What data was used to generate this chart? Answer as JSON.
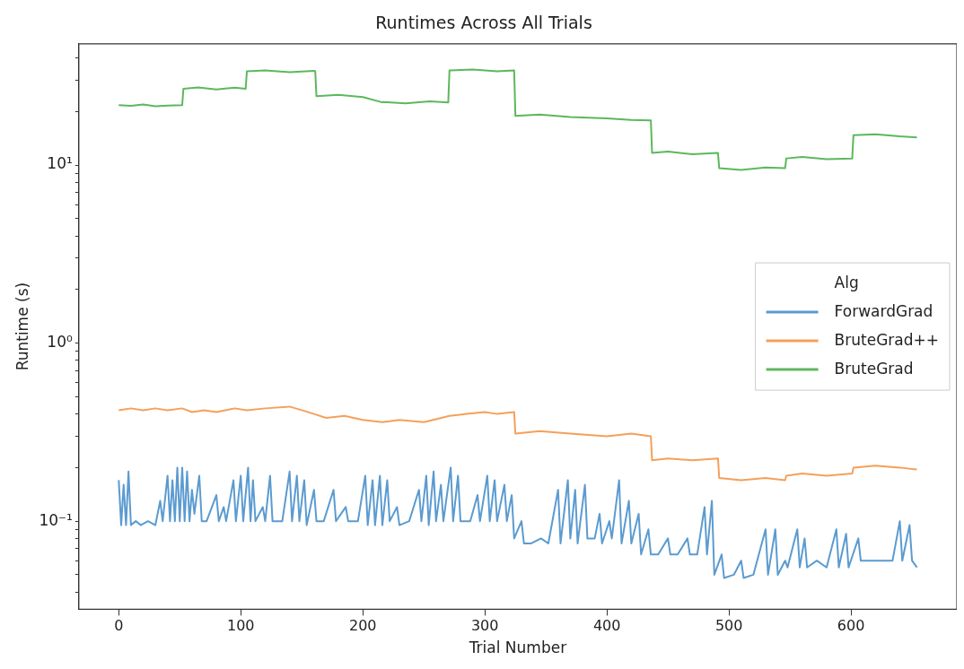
{
  "chart_data": {
    "type": "line",
    "title": "Runtimes Across All Trials",
    "xlabel": "Trial Number",
    "ylabel": "Runtime (s)",
    "legend_title": "Alg",
    "legend": "center right",
    "log": "y",
    "grid": false,
    "xlim": [
      -32.7,
      686.7
    ],
    "xticks": [
      0,
      100,
      200,
      300,
      400,
      500,
      600
    ],
    "ylim": [
      0.032,
      48
    ],
    "yticks": [
      {
        "value": 0.04,
        "label": null
      },
      {
        "value": 0.05,
        "label": null
      },
      {
        "value": 0.06,
        "label": null
      },
      {
        "value": 0.07,
        "label": null
      },
      {
        "value": 0.08,
        "label": null
      },
      {
        "value": 0.09,
        "label": null
      },
      {
        "value": 0.1,
        "label": "10⁻¹"
      },
      {
        "value": 0.2,
        "label": null
      },
      {
        "value": 0.3,
        "label": null
      },
      {
        "value": 0.4,
        "label": null
      },
      {
        "value": 0.5,
        "label": null
      },
      {
        "value": 0.6,
        "label": null
      },
      {
        "value": 0.7,
        "label": null
      },
      {
        "value": 0.8,
        "label": null
      },
      {
        "value": 0.9,
        "label": null
      },
      {
        "value": 1,
        "label": "10⁰"
      },
      {
        "value": 2,
        "label": null
      },
      {
        "value": 3,
        "label": null
      },
      {
        "value": 4,
        "label": null
      },
      {
        "value": 5,
        "label": null
      },
      {
        "value": 6,
        "label": null
      },
      {
        "value": 7,
        "label": null
      },
      {
        "value": 8,
        "label": null
      },
      {
        "value": 9,
        "label": null
      },
      {
        "value": 10,
        "label": "10¹"
      },
      {
        "value": 20,
        "label": null
      },
      {
        "value": 30,
        "label": null
      },
      {
        "value": 40,
        "label": null
      }
    ],
    "series": [
      {
        "name": "ForwardGrad",
        "color": "#5b9bd0",
        "x": [
          0,
          2,
          4,
          6,
          8,
          10,
          14,
          18,
          24,
          30,
          34,
          36,
          40,
          42,
          44,
          46,
          48,
          50,
          52,
          54,
          56,
          58,
          60,
          62,
          66,
          68,
          72,
          80,
          82,
          86,
          88,
          94,
          96,
          100,
          102,
          106,
          108,
          110,
          112,
          118,
          120,
          124,
          126,
          134,
          140,
          142,
          146,
          148,
          152,
          154,
          160,
          162,
          168,
          176,
          178,
          186,
          188,
          196,
          202,
          204,
          208,
          210,
          214,
          216,
          220,
          222,
          228,
          230,
          238,
          246,
          248,
          252,
          254,
          258,
          260,
          264,
          266,
          272,
          274,
          278,
          280,
          288,
          294,
          296,
          302,
          304,
          308,
          310,
          316,
          318,
          322,
          324,
          330,
          332,
          338,
          346,
          352,
          360,
          362,
          368,
          370,
          374,
          376,
          382,
          384,
          390,
          394,
          396,
          402,
          404,
          410,
          412,
          418,
          420,
          426,
          428,
          434,
          436,
          442,
          450,
          452,
          458,
          466,
          468,
          474,
          480,
          482,
          486,
          488,
          494,
          496,
          504,
          510,
          512,
          520,
          530,
          532,
          538,
          540,
          546,
          548,
          556,
          558,
          562,
          564,
          572,
          580,
          588,
          590,
          596,
          598,
          606,
          608,
          616,
          626,
          634,
          640,
          642,
          648,
          650,
          654
        ],
        "values": [
          0.17,
          0.095,
          0.16,
          0.095,
          0.19,
          0.095,
          0.1,
          0.095,
          0.1,
          0.095,
          0.13,
          0.1,
          0.18,
          0.1,
          0.17,
          0.1,
          0.2,
          0.1,
          0.2,
          0.1,
          0.19,
          0.1,
          0.15,
          0.11,
          0.18,
          0.1,
          0.1,
          0.14,
          0.1,
          0.12,
          0.1,
          0.17,
          0.1,
          0.18,
          0.1,
          0.2,
          0.1,
          0.17,
          0.1,
          0.12,
          0.1,
          0.18,
          0.1,
          0.1,
          0.19,
          0.1,
          0.18,
          0.1,
          0.17,
          0.095,
          0.15,
          0.1,
          0.1,
          0.15,
          0.1,
          0.12,
          0.1,
          0.1,
          0.18,
          0.095,
          0.17,
          0.095,
          0.18,
          0.095,
          0.17,
          0.1,
          0.12,
          0.095,
          0.1,
          0.15,
          0.1,
          0.18,
          0.095,
          0.19,
          0.1,
          0.16,
          0.1,
          0.2,
          0.1,
          0.18,
          0.1,
          0.1,
          0.14,
          0.1,
          0.18,
          0.1,
          0.17,
          0.1,
          0.16,
          0.1,
          0.14,
          0.08,
          0.1,
          0.075,
          0.075,
          0.08,
          0.075,
          0.15,
          0.075,
          0.17,
          0.08,
          0.15,
          0.075,
          0.16,
          0.08,
          0.08,
          0.11,
          0.075,
          0.1,
          0.08,
          0.17,
          0.075,
          0.13,
          0.075,
          0.11,
          0.065,
          0.09,
          0.065,
          0.065,
          0.08,
          0.065,
          0.065,
          0.08,
          0.065,
          0.065,
          0.12,
          0.065,
          0.13,
          0.05,
          0.065,
          0.048,
          0.05,
          0.06,
          0.048,
          0.05,
          0.09,
          0.05,
          0.09,
          0.05,
          0.06,
          0.055,
          0.09,
          0.055,
          0.08,
          0.055,
          0.06,
          0.055,
          0.09,
          0.055,
          0.085,
          0.055,
          0.08,
          0.06,
          0.06,
          0.06,
          0.06,
          0.1,
          0.06,
          0.095,
          0.06,
          0.055
        ]
      },
      {
        "name": "BruteGrad++",
        "color": "#f5a05a",
        "x": [
          0,
          10,
          20,
          30,
          40,
          52,
          60,
          70,
          80,
          95,
          105,
          120,
          140,
          150,
          160,
          170,
          185,
          200,
          216,
          230,
          250,
          271,
          285,
          300,
          310,
          324,
          325,
          345,
          370,
          400,
          420,
          436,
          437,
          450,
          470,
          491,
          492,
          510,
          530,
          546,
          547,
          560,
          580,
          601,
          602,
          620,
          640,
          654
        ],
        "values": [
          0.42,
          0.43,
          0.42,
          0.43,
          0.42,
          0.43,
          0.41,
          0.42,
          0.41,
          0.43,
          0.42,
          0.43,
          0.44,
          0.42,
          0.4,
          0.38,
          0.39,
          0.37,
          0.36,
          0.37,
          0.36,
          0.39,
          0.4,
          0.41,
          0.4,
          0.41,
          0.31,
          0.32,
          0.31,
          0.3,
          0.31,
          0.3,
          0.22,
          0.225,
          0.22,
          0.225,
          0.175,
          0.17,
          0.175,
          0.17,
          0.18,
          0.185,
          0.18,
          0.185,
          0.2,
          0.205,
          0.2,
          0.195
        ]
      },
      {
        "name": "BruteGrad",
        "color": "#5cb85c",
        "x": [
          0,
          10,
          20,
          30,
          40,
          52,
          53,
          65,
          80,
          95,
          104,
          105,
          120,
          140,
          160,
          161,
          162,
          180,
          200,
          216,
          217,
          235,
          255,
          270,
          271,
          290,
          310,
          324,
          325,
          345,
          370,
          400,
          420,
          436,
          437,
          450,
          470,
          491,
          492,
          510,
          530,
          546,
          547,
          560,
          580,
          601,
          602,
          620,
          640,
          654
        ],
        "values": [
          21.7,
          21.5,
          21.9,
          21.4,
          21.6,
          21.7,
          26.8,
          27.3,
          26.6,
          27.2,
          26.8,
          33.6,
          34,
          33.2,
          33.8,
          33.6,
          24.4,
          24.8,
          24.1,
          22.5,
          22.6,
          22.2,
          22.8,
          22.5,
          34,
          34.4,
          33.6,
          34,
          18.9,
          19.2,
          18.6,
          18.3,
          17.9,
          17.8,
          11.7,
          11.9,
          11.5,
          11.7,
          9.6,
          9.4,
          9.7,
          9.6,
          10.9,
          11.1,
          10.8,
          10.9,
          14.7,
          14.9,
          14.5,
          14.3
        ]
      }
    ]
  }
}
